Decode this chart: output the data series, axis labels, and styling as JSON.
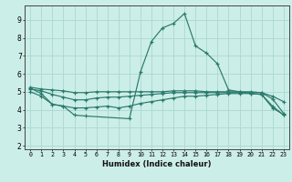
{
  "title": "",
  "xlabel": "Humidex (Indice chaleur)",
  "ylabel": "",
  "bg_color": "#cceee8",
  "grid_color": "#aad8d2",
  "line_color": "#2a7a6a",
  "xlim": [
    -0.5,
    23.5
  ],
  "ylim": [
    1.8,
    9.8
  ],
  "yticks": [
    2,
    3,
    4,
    5,
    6,
    7,
    8,
    9
  ],
  "xticks": [
    0,
    1,
    2,
    3,
    4,
    5,
    6,
    7,
    8,
    9,
    10,
    11,
    12,
    13,
    14,
    15,
    16,
    17,
    18,
    19,
    20,
    21,
    22,
    23
  ],
  "series": [
    {
      "x": [
        0,
        1,
        2,
        3,
        4,
        5,
        9,
        10,
        11,
        12,
        13,
        14,
        15,
        16,
        17,
        18,
        19,
        20,
        21,
        22,
        23
      ],
      "y": [
        5.2,
        4.9,
        4.3,
        4.2,
        3.7,
        3.65,
        3.5,
        6.1,
        7.8,
        8.55,
        8.8,
        9.35,
        7.55,
        7.15,
        6.55,
        5.1,
        5.0,
        4.9,
        4.85,
        4.2,
        3.7
      ]
    },
    {
      "x": [
        0,
        1,
        2,
        3,
        4,
        5,
        6,
        7,
        8,
        9,
        10,
        11,
        12,
        13,
        14,
        15,
        16,
        17,
        18,
        19,
        20,
        21,
        22,
        23
      ],
      "y": [
        5.0,
        4.75,
        4.3,
        4.2,
        4.1,
        4.1,
        4.15,
        4.2,
        4.1,
        4.2,
        4.35,
        4.45,
        4.55,
        4.65,
        4.75,
        4.75,
        4.8,
        4.85,
        4.9,
        4.9,
        4.9,
        4.85,
        4.1,
        3.72
      ]
    },
    {
      "x": [
        0,
        1,
        2,
        3,
        4,
        5,
        6,
        7,
        8,
        9,
        10,
        11,
        12,
        13,
        14,
        15,
        16,
        17,
        18,
        19,
        20,
        21,
        22,
        23
      ],
      "y": [
        5.15,
        5.05,
        4.85,
        4.7,
        4.55,
        4.55,
        4.65,
        4.7,
        4.7,
        4.75,
        4.8,
        4.85,
        4.9,
        4.95,
        4.95,
        4.95,
        4.95,
        4.95,
        4.95,
        4.95,
        4.95,
        4.95,
        4.75,
        4.45
      ]
    },
    {
      "x": [
        0,
        1,
        2,
        3,
        4,
        5,
        6,
        7,
        8,
        9,
        10,
        11,
        12,
        13,
        14,
        15,
        16,
        17,
        18,
        19,
        20,
        21,
        22,
        23
      ],
      "y": [
        5.25,
        5.15,
        5.1,
        5.05,
        4.95,
        4.95,
        5.0,
        5.0,
        5.0,
        5.0,
        5.0,
        5.0,
        5.0,
        5.05,
        5.05,
        5.05,
        5.0,
        5.0,
        5.0,
        5.0,
        5.0,
        4.95,
        4.6,
        3.8
      ]
    }
  ]
}
